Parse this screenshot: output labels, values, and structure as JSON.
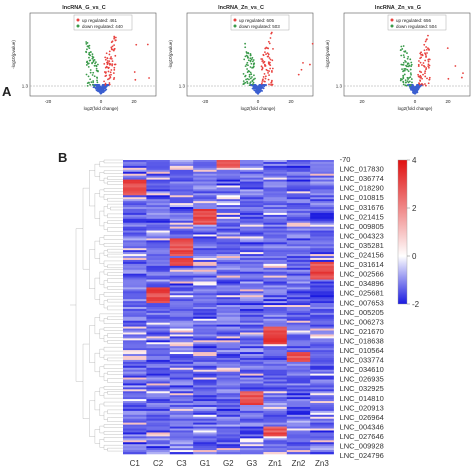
{
  "panel_a": {
    "letter": "A",
    "plots": [
      {
        "title": "lncRNA_G_vs_C",
        "legend_up": "up regulated: 461",
        "legend_down": "down regulated: 440",
        "ylabel": "-log10(pvalue)",
        "xlabel": "log2(fold change)",
        "xticks": [
          "-20",
          "0",
          "20"
        ],
        "threshold_label": "1.3"
      },
      {
        "title": "lncRNA_Zn_vs_C",
        "legend_up": "up regulated: 605",
        "legend_down": "down regulated: 503",
        "ylabel": "-log10(pvalue)",
        "xlabel": "log2(fold change)",
        "xticks": [
          "-20",
          "0",
          "20"
        ],
        "threshold_label": "1.3"
      },
      {
        "title": "lncRNA_Zn_vs_G",
        "legend_up": "up regulated: 656",
        "legend_down": "down regulated: 504",
        "ylabel": "-log10(pvalue)",
        "xlabel": "log2(fold change)",
        "xticks": [
          "20",
          "0",
          "20"
        ],
        "threshold_label": "1.3"
      }
    ],
    "colors": {
      "up": "#e8423f",
      "down": "#3a9a4a",
      "ns": "#3b5fd0"
    }
  },
  "panel_b": {
    "letter": "B",
    "columns": [
      "C1",
      "C2",
      "C3",
      "G1",
      "G2",
      "G3",
      "Zn1",
      "Zn2",
      "Zn3"
    ],
    "row_labels": [
      "-70",
      "LNC_017830",
      "LNC_036774",
      "LNC_018290",
      "LNC_010815",
      "LNC_031676",
      "LNC_021415",
      "LNC_009805",
      "LNC_004323",
      "LNC_035281",
      "LNC_024156",
      "LNC_031614",
      "LNC_002566",
      "LNC_034896",
      "LNC_025681",
      "LNC_007653",
      "LNC_005205",
      "LNC_006273",
      "LNC_021670",
      "LNC_018638",
      "LNC_010564",
      "LNC_033774",
      "LNC_034610",
      "LNC_026935",
      "LNC_032925",
      "LNC_014810",
      "LNC_020913",
      "LNC_026964",
      "LNC_004346",
      "LNC_027646",
      "LNC_009928",
      "LNC_024796"
    ],
    "scale": {
      "ticks": [
        "4",
        "2",
        "0",
        "-2"
      ],
      "max": 4,
      "min": -2,
      "colors": {
        "high": "#e01010",
        "mid": "#ffffff",
        "low": "#1a1ae0"
      }
    }
  },
  "chart_data": [
    {
      "type": "scatter",
      "title": "lncRNA_G_vs_C",
      "xlabel": "log2(fold change)",
      "ylabel": "-log10(pvalue)",
      "series": [
        {
          "name": "up regulated: 461",
          "values": []
        },
        {
          "name": "down regulated: 440",
          "values": []
        }
      ]
    },
    {
      "type": "scatter",
      "title": "lncRNA_Zn_vs_C",
      "xlabel": "log2(fold change)",
      "ylabel": "-log10(pvalue)",
      "series": [
        {
          "name": "up regulated: 605",
          "values": []
        },
        {
          "name": "down regulated: 503",
          "values": []
        }
      ]
    },
    {
      "type": "scatter",
      "title": "lncRNA_Zn_vs_G",
      "xlabel": "log2(fold change)",
      "ylabel": "-log10(pvalue)",
      "series": [
        {
          "name": "up regulated: 656",
          "values": []
        },
        {
          "name": "down regulated: 504",
          "values": []
        }
      ]
    },
    {
      "type": "heatmap",
      "categories": [
        "C1",
        "C2",
        "C3",
        "G1",
        "G2",
        "G3",
        "Zn1",
        "Zn2",
        "Zn3"
      ],
      "zlim": [
        -2,
        4
      ]
    }
  ]
}
